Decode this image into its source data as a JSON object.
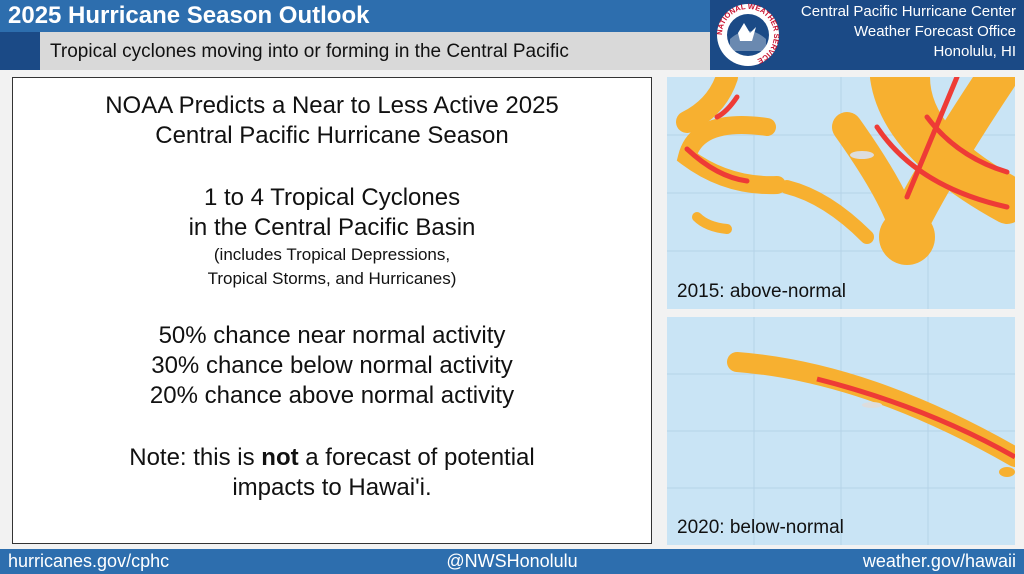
{
  "header": {
    "title": "2025 Hurricane Season Outlook",
    "subtitle": "Tropical cyclones moving into or forming in the Central Pacific",
    "logo_text": "NATIONAL WEATHER SERVICE",
    "office": [
      "Central Pacific Hurricane Center",
      "Weather Forecast Office",
      "Honolulu, HI"
    ]
  },
  "body": {
    "headline": [
      "NOAA Predicts a Near to Less Active 2025",
      "Central Pacific Hurricane Season"
    ],
    "count": [
      "1 to 4 Tropical Cyclones",
      "in the Central Pacific Basin"
    ],
    "includes": [
      "(includes Tropical Depressions,",
      "Tropical Storms, and Hurricanes)"
    ],
    "chances": [
      "50% chance near normal activity",
      "30% chance below normal activity",
      "20% chance above normal activity"
    ],
    "note": [
      "Note: this is ",
      "not",
      " a forecast of potential",
      "impacts to Hawai'i."
    ]
  },
  "maps": [
    {
      "caption": "2015: above-normal"
    },
    {
      "caption": "2020: below-normal"
    }
  ],
  "footer": [
    "hurricanes.gov/cphc",
    "@NWSHonolulu",
    "weather.gov/hawaii"
  ]
}
